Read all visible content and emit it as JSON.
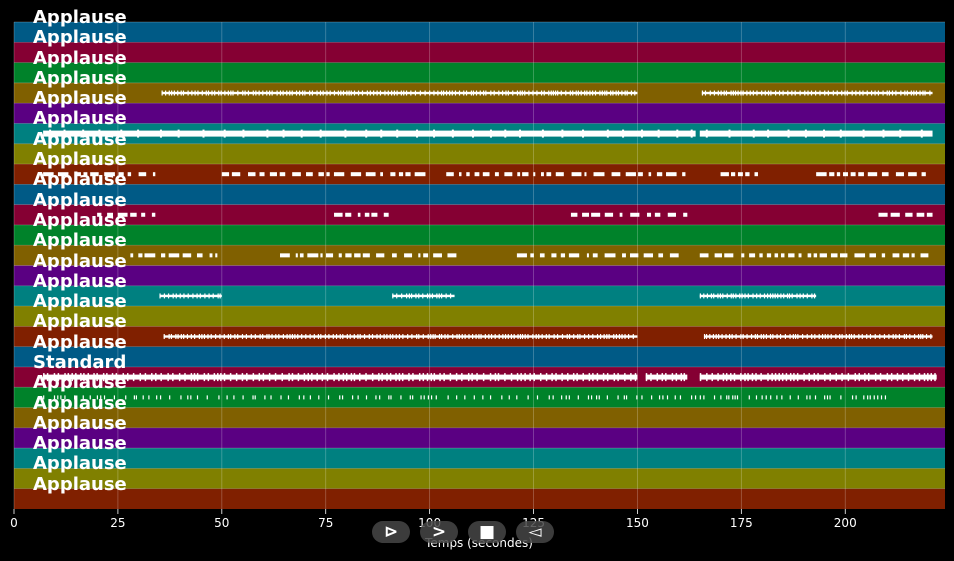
{
  "chart_data": {
    "type": "timeline",
    "xlabel": "Temps (secondes)",
    "xlim": [
      0,
      224
    ],
    "xticks": [
      0,
      25,
      50,
      75,
      100,
      125,
      150,
      175,
      200
    ],
    "grid": true,
    "band_colors": [
      "#005a86",
      "#850033",
      "#00822a",
      "#806000",
      "#5a0082",
      "#008080",
      "#808000",
      "#802000"
    ],
    "tracks": [
      {
        "label": "Applause",
        "segments": []
      },
      {
        "label": "Applause",
        "segments": []
      },
      {
        "label": "Applause",
        "segments": []
      },
      {
        "label": "Applause",
        "segments": [
          [
            35.5,
            150
          ],
          [
            165.5,
            221
          ]
        ],
        "style": "dense"
      },
      {
        "label": "Applause",
        "segments": []
      },
      {
        "label": "Applause",
        "segments": [
          [
            7,
            164
          ],
          [
            165,
            221
          ]
        ],
        "style": "solid"
      },
      {
        "label": "Applause",
        "segments": []
      },
      {
        "label": "Applause",
        "segments": [
          [
            7,
            34
          ],
          [
            50,
            100
          ],
          [
            104,
            162
          ],
          [
            170,
            179
          ],
          [
            193,
            220
          ]
        ],
        "style": "sparse"
      },
      {
        "label": "Applause",
        "segments": []
      },
      {
        "label": "Applause",
        "segments": [
          [
            20,
            34
          ],
          [
            77,
            91
          ],
          [
            134,
            162
          ],
          [
            208,
            221
          ]
        ],
        "style": "sparse"
      },
      {
        "label": "Applause",
        "segments": []
      },
      {
        "label": "Applause",
        "segments": [
          [
            28,
            50
          ],
          [
            64,
            107
          ],
          [
            121,
            162
          ],
          [
            165,
            220
          ]
        ],
        "style": "sparse"
      },
      {
        "label": "Applause",
        "segments": []
      },
      {
        "label": "Applause",
        "segments": [
          [
            35,
            50
          ],
          [
            91,
            106
          ],
          [
            165,
            193
          ]
        ],
        "style": "dense"
      },
      {
        "label": "Applause",
        "segments": []
      },
      {
        "label": "Applause",
        "segments": [
          [
            36,
            150
          ],
          [
            166,
            221
          ]
        ],
        "style": "dense"
      },
      {
        "label": "Applause",
        "segments": []
      },
      {
        "label": "Standard",
        "segments": [
          [
            7,
            150
          ],
          [
            152,
            162
          ],
          [
            165,
            222
          ]
        ],
        "style": "thick"
      },
      {
        "label": "Applause",
        "segments": [
          [
            7,
            210
          ]
        ],
        "style": "ticks"
      },
      {
        "label": "Applause",
        "segments": []
      },
      {
        "label": "Applause",
        "segments": []
      },
      {
        "label": "Applause",
        "segments": []
      },
      {
        "label": "Applause",
        "segments": []
      },
      {
        "label": "Applause",
        "segments": []
      }
    ]
  },
  "controls": {
    "play_label": "⊳",
    "next_label": ">",
    "stop_label": "■",
    "back_label": "◅"
  }
}
